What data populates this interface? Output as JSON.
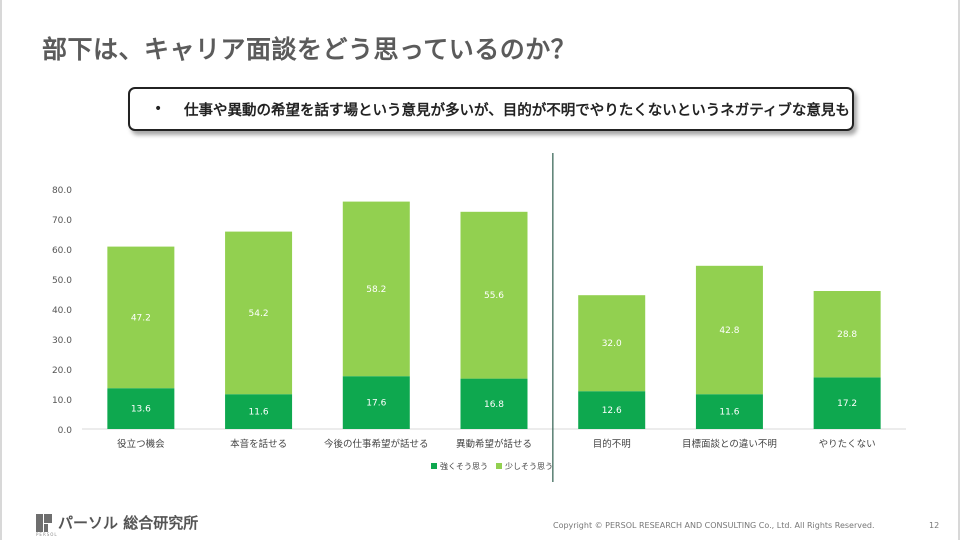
{
  "slide": {
    "title": "部下は、キャリア面談をどう思っているのか？",
    "callout_bullet": "•",
    "callout_text": "仕事や異動の希望を話す場という意見が多いが、目的が不明でやりたくないというネガティブな意見も",
    "logo_text": "パーソル 総合研究所",
    "logo_sub": "PERSOL",
    "copyright": "Copyright © PERSOL RESEARCH AND CONSULTING Co., Ltd. All Rights Reserved.",
    "page_number": "12"
  },
  "chart_data": {
    "type": "bar",
    "stacked": true,
    "categories": [
      "役立つ機会",
      "本音を話せる",
      "今後の仕事希望が話せる",
      "異動希望が話せる",
      "目的不明",
      "目標面談との違い不明",
      "やりたくない"
    ],
    "series": [
      {
        "name": "強くそう思う",
        "values": [
          13.6,
          11.6,
          17.6,
          16.8,
          12.6,
          11.6,
          17.2
        ],
        "color": "#0ea84f"
      },
      {
        "name": "少しそう思う",
        "values": [
          47.2,
          54.2,
          58.2,
          55.6,
          32.0,
          42.8,
          28.8
        ],
        "color": "#92d050"
      }
    ],
    "yticks": [
      "0.0",
      "10.0",
      "20.0",
      "30.0",
      "40.0",
      "50.0",
      "60.0",
      "70.0",
      "80.0"
    ],
    "ylim": [
      0,
      80
    ],
    "grid": false,
    "legend_position": "bottom",
    "divider_after_category": 3
  }
}
